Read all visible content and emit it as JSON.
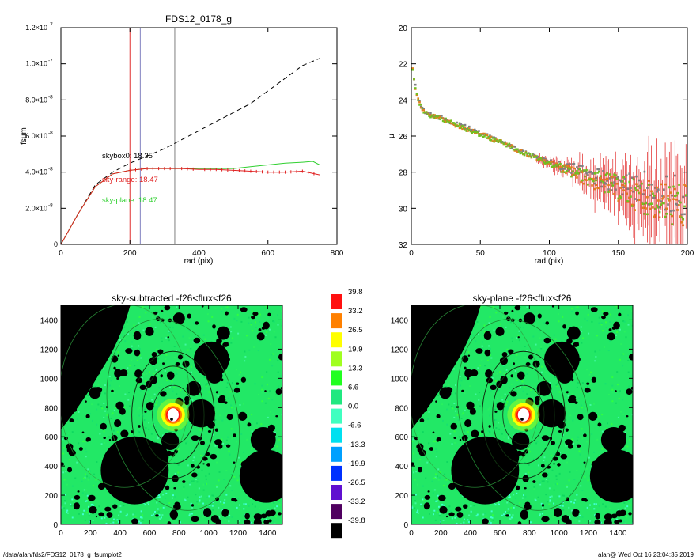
{
  "footer": {
    "path": "/data/alan/fds2/FDS12_0178_g_fsumplot2",
    "stamp": "alan@  Wed Oct 16 23:04:35 2019"
  },
  "chart_data": [
    {
      "type": "line",
      "title": "FDS12_0178_g",
      "xlabel": "rad (pix)",
      "ylabel": "fsum",
      "xlim": [
        0,
        800
      ],
      "ylim": [
        0,
        1.2e-07
      ],
      "xticks": [
        "0",
        "200",
        "400",
        "600",
        "800"
      ],
      "yticks_mantissa": [
        "0",
        "2.0×10",
        "4.0×10",
        "6.0×10",
        "8.0×10",
        "1.0×10",
        "1.2×10"
      ],
      "yticks_exp": [
        "",
        "-8",
        "-8",
        "-8",
        "-8",
        "-7",
        "-7"
      ],
      "vlines": [
        {
          "x": 200,
          "color": "#e03030"
        },
        {
          "x": 230,
          "color": "#8080c0"
        },
        {
          "x": 330,
          "color": "#808080"
        }
      ],
      "annotations": [
        {
          "text": "skybox0: 18.35",
          "color": "#000000"
        },
        {
          "text": "sky-range: 18.47",
          "color": "#e02020"
        },
        {
          "text": "sky-plane: 18.47",
          "color": "#30d030"
        }
      ],
      "series": [
        {
          "color": "#000000",
          "dash": true,
          "x": [
            0,
            50,
            100,
            150,
            200,
            250,
            300,
            350,
            400,
            450,
            500,
            550,
            600,
            650,
            700,
            750
          ],
          "y": [
            0,
            1.7e-08,
            3.3e-08,
            4e-08,
            4.5e-08,
            4.9e-08,
            5.3e-08,
            5.8e-08,
            6.3e-08,
            6.8e-08,
            7.3e-08,
            7.8e-08,
            8.5e-08,
            9.2e-08,
            9.9e-08,
            1.03e-07
          ]
        },
        {
          "color": "#30d030",
          "dash": false,
          "x": [
            0,
            50,
            100,
            150,
            200,
            250,
            300,
            350,
            400,
            450,
            500,
            550,
            600,
            650,
            700,
            730,
            750
          ],
          "y": [
            0,
            1.7e-08,
            3.2e-08,
            3.9e-08,
            4.1e-08,
            4.2e-08,
            4.2e-08,
            4.2e-08,
            4.2e-08,
            4.2e-08,
            4.2e-08,
            4.3e-08,
            4.4e-08,
            4.5e-08,
            4.55e-08,
            4.6e-08,
            4.4e-08
          ]
        },
        {
          "color": "#e02020",
          "dash": false,
          "x": [
            0,
            50,
            100,
            150,
            200,
            250,
            300,
            350,
            400,
            450,
            500,
            550,
            600,
            650,
            700,
            750
          ],
          "y": [
            0,
            1.7e-08,
            3.2e-08,
            3.9e-08,
            4.1e-08,
            4.2e-08,
            4.2e-08,
            4.2e-08,
            4.15e-08,
            4.15e-08,
            4.1e-08,
            4.05e-08,
            4e-08,
            4e-08,
            4.05e-08,
            3.85e-08
          ]
        }
      ]
    },
    {
      "type": "scatter",
      "xlabel": "rad (pix)",
      "ylabel": "μ",
      "xlim": [
        0,
        200
      ],
      "ylim": [
        32,
        20
      ],
      "xticks": [
        "0",
        "50",
        "100",
        "150",
        "200"
      ],
      "yticks": [
        "20",
        "22",
        "24",
        "26",
        "28",
        "30",
        "32"
      ],
      "profile": {
        "x": [
          1,
          2,
          3,
          4,
          5,
          6,
          8,
          10,
          12,
          15,
          20,
          30,
          40,
          50,
          60,
          70,
          80,
          90,
          100,
          110,
          120,
          130,
          140,
          150,
          160,
          170,
          180,
          190,
          200
        ],
        "y": [
          22.3,
          22.8,
          23.3,
          23.7,
          24.0,
          24.2,
          24.5,
          24.7,
          24.8,
          24.9,
          25.0,
          25.3,
          25.6,
          25.9,
          26.2,
          26.5,
          26.9,
          27.2,
          27.5,
          27.8,
          28.1,
          28.4,
          28.6,
          28.9,
          29.2,
          29.4,
          29.6,
          29.8,
          30.0
        ]
      },
      "series_colors": [
        "#808080",
        "#e08020",
        "#70c020"
      ],
      "error_color": "#e02020"
    },
    {
      "type": "heatmap",
      "title": "sky-subtracted -f26<flux<f26",
      "xlim": [
        0,
        1500
      ],
      "ylim": [
        0,
        1500
      ],
      "xticks": [
        "0",
        "200",
        "400",
        "600",
        "800",
        "1000",
        "1200",
        "1400"
      ],
      "yticks": [
        "0",
        "200",
        "400",
        "600",
        "800",
        "1000",
        "1200",
        "1400"
      ],
      "galaxy_center": [
        760,
        750
      ]
    },
    {
      "type": "heatmap",
      "title": "sky-plane -f26<flux<f26",
      "xlim": [
        0,
        1500
      ],
      "ylim": [
        0,
        1500
      ],
      "xticks": [
        "0",
        "200",
        "400",
        "600",
        "800",
        "1000",
        "1200",
        "1400"
      ],
      "yticks": [
        "0",
        "200",
        "400",
        "600",
        "800",
        "1000",
        "1200",
        "1400"
      ],
      "galaxy_center": [
        760,
        750
      ]
    }
  ],
  "colorbar": {
    "labels": [
      "39.8",
      "33.2",
      "26.5",
      "19.9",
      "13.3",
      "6.6",
      "0.0",
      "-6.6",
      "-13.3",
      "-19.9",
      "-26.5",
      "-33.2",
      "-39.8"
    ],
    "colors": [
      "#ff1010",
      "#ff8000",
      "#ffff00",
      "#a0ff20",
      "#20ff20",
      "#20e880",
      "#40ffc0",
      "#00e0f0",
      "#00a0ff",
      "#0030ff",
      "#6010d0",
      "#500060",
      "#000000"
    ]
  }
}
